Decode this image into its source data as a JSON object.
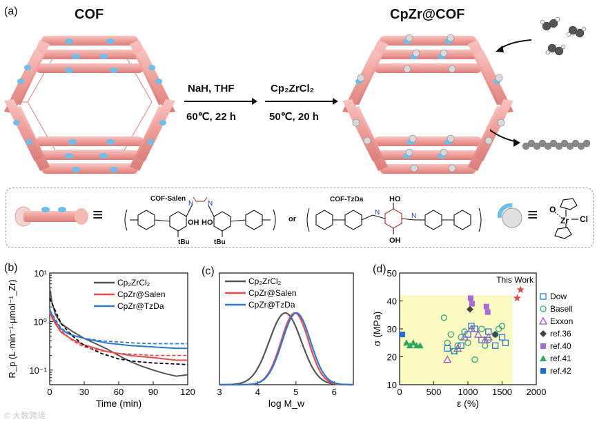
{
  "panel_a": {
    "tag": "(a)",
    "cof_title": "COF",
    "cpzr_title": "CpZr@COF",
    "step1": {
      "reagent": "NaH, THF",
      "condition": "60℃, 22 h"
    },
    "step2": {
      "reagent": "Cp₂ZrCl₂",
      "condition": "50℃, 20 h"
    },
    "equiv": "≡",
    "or": "or",
    "salen_name": "COF-Salen",
    "tzda_name": "COF-TzDa",
    "salen_ho": "HO",
    "salen_oh": "OH",
    "salen_tbu1": "tBu",
    "salen_tbu2": "tBu",
    "tzda_ho": "HO",
    "tzda_oh": "OH",
    "tzda_n1": "N",
    "tzda_n2": "N",
    "salen_n1": "N",
    "salen_n2": "N",
    "zr_label": "Zr",
    "cl_label": "Cl",
    "o_label": "O"
  },
  "chart_data": [
    {
      "panel": "(b)",
      "type": "line",
      "xlabel": "Time (min)",
      "ylabel": "R_p (L·min⁻¹·μmol⁻¹_Zr)",
      "yscale": "log",
      "xlim": [
        0,
        120
      ],
      "ylim": [
        0.05,
        10
      ],
      "xticks": [
        0,
        30,
        60,
        90,
        120
      ],
      "yticks": [
        {
          "v": 10,
          "label": "10¹"
        },
        {
          "v": 1,
          "label": "10⁰"
        },
        {
          "v": 0.1,
          "label": "10⁻¹"
        }
      ],
      "legend": [
        "Cp₂ZrCl₂",
        "CpZr@Salen",
        "CpZr@TzDa"
      ],
      "series": [
        {
          "name": "Cp₂ZrCl₂",
          "color": "#555555",
          "x": [
            0,
            2,
            5,
            10,
            15,
            20,
            30,
            40,
            50,
            60,
            70,
            80,
            90,
            100,
            110,
            120
          ],
          "y": [
            5.0,
            2.5,
            1.4,
            0.9,
            0.75,
            0.62,
            0.45,
            0.35,
            0.27,
            0.2,
            0.15,
            0.12,
            0.1,
            0.085,
            0.075,
            0.08
          ]
        },
        {
          "name": "CpZr@Salen",
          "color": "#e84a4a",
          "x": [
            0,
            2,
            5,
            10,
            15,
            20,
            30,
            40,
            50,
            60,
            70,
            80,
            90,
            100,
            110,
            120
          ],
          "y": [
            1.6,
            1.2,
            0.9,
            0.6,
            0.5,
            0.42,
            0.33,
            0.28,
            0.24,
            0.22,
            0.2,
            0.19,
            0.18,
            0.17,
            0.16,
            0.16
          ]
        },
        {
          "name": "CpZr@TzDa",
          "color": "#2a78d6",
          "x": [
            0,
            2,
            5,
            10,
            15,
            20,
            30,
            40,
            50,
            60,
            70,
            80,
            90,
            100,
            110,
            120
          ],
          "y": [
            1.8,
            1.4,
            1.0,
            0.7,
            0.58,
            0.52,
            0.45,
            0.4,
            0.36,
            0.34,
            0.32,
            0.31,
            0.3,
            0.29,
            0.28,
            0.28
          ]
        },
        {
          "name": "fit-Cp₂ZrCl₂",
          "color": "#000000",
          "dashed": true,
          "x": [
            0,
            10,
            20,
            30,
            45,
            60,
            75,
            90,
            105,
            120
          ],
          "y": [
            3.0,
            0.9,
            0.5,
            0.32,
            0.22,
            0.17,
            0.15,
            0.14,
            0.135,
            0.13
          ]
        },
        {
          "name": "fit-Salen",
          "color": "#e84a4a",
          "dashed": true,
          "x": [
            0,
            10,
            20,
            30,
            45,
            60,
            75,
            90,
            105,
            120
          ],
          "y": [
            1.5,
            0.65,
            0.4,
            0.3,
            0.25,
            0.22,
            0.21,
            0.2,
            0.2,
            0.2
          ]
        },
        {
          "name": "fit-TzDa",
          "color": "#2a78d6",
          "dashed": true,
          "x": [
            0,
            10,
            20,
            30,
            45,
            60,
            75,
            90,
            105,
            120
          ],
          "y": [
            1.7,
            0.72,
            0.52,
            0.45,
            0.4,
            0.38,
            0.36,
            0.35,
            0.35,
            0.35
          ]
        }
      ]
    },
    {
      "panel": "(c)",
      "type": "line",
      "xlabel": "log M_w",
      "xlim": [
        3,
        6.5
      ],
      "xticks": [
        3,
        4,
        5,
        6
      ],
      "legend": [
        "Cp₂ZrCl₂",
        "CpZr@Salen",
        "CpZr@TzDa"
      ],
      "series": [
        {
          "name": "Cp₂ZrCl₂",
          "color": "#555555",
          "center": 4.72,
          "sigma": 0.42
        },
        {
          "name": "CpZr@Salen",
          "color": "#e84a4a",
          "center": 4.97,
          "sigma": 0.36
        },
        {
          "name": "CpZr@TzDa",
          "color": "#2a78d6",
          "center": 5.01,
          "sigma": 0.37
        }
      ]
    },
    {
      "panel": "(d)",
      "type": "scatter",
      "xlabel": "ε (%)",
      "ylabel": "σ (MPa)",
      "xlim": [
        0,
        2000
      ],
      "ylim": [
        10,
        50
      ],
      "xticks": [
        0,
        500,
        1000,
        1500,
        2000
      ],
      "yticks": [
        10,
        20,
        30,
        40,
        50
      ],
      "annotation": "This Work",
      "region": {
        "x": [
          0,
          1650
        ],
        "y": [
          10,
          42
        ],
        "color": "#fbfac0"
      },
      "series": [
        {
          "name": "Dow",
          "marker": "square-open",
          "color": "#2a78d6",
          "x": [
            700,
            800,
            900,
            1000,
            1050,
            1100,
            1200,
            1300,
            1400,
            1500,
            1550
          ],
          "y": [
            23,
            22,
            24,
            28,
            31,
            30,
            26,
            29,
            24,
            27,
            25
          ]
        },
        {
          "name": "Basell",
          "marker": "circle-open",
          "color": "#2ea880",
          "x": [
            650,
            700,
            750,
            800,
            850,
            900,
            950,
            1000,
            1100,
            1200,
            1250,
            1300,
            1400,
            1450,
            1500
          ],
          "y": [
            34,
            25,
            28,
            22,
            24,
            27,
            29,
            25,
            19,
            30,
            24,
            26,
            28,
            30,
            31
          ]
        },
        {
          "name": "Exxon",
          "marker": "triangle-open",
          "color": "#9b59d0",
          "x": [
            700,
            850,
            950,
            1050,
            1150,
            1250,
            1300
          ],
          "y": [
            19,
            23,
            27,
            30,
            28,
            26,
            27
          ]
        },
        {
          "name": "ref.36",
          "marker": "diamond",
          "color": "#444444",
          "x": [
            1030,
            1400
          ],
          "y": [
            37,
            28
          ]
        },
        {
          "name": "ref.40",
          "marker": "square",
          "color": "#a66bd6",
          "x": [
            1040,
            1060,
            1270,
            1290
          ],
          "y": [
            41,
            39,
            38,
            36
          ]
        },
        {
          "name": "ref.41",
          "marker": "triangle",
          "color": "#2ea860",
          "x": [
            100,
            150,
            200,
            250,
            300
          ],
          "y": [
            25,
            24,
            25,
            24,
            24
          ]
        },
        {
          "name": "ref.42",
          "marker": "square",
          "color": "#1a6fd0",
          "x": [
            40
          ],
          "y": [
            28
          ]
        },
        {
          "name": "This Work",
          "marker": "star",
          "color": "#e84a4a",
          "x": [
            1720,
            1770
          ],
          "y": [
            41,
            44
          ]
        }
      ]
    }
  ],
  "watermark": "© 大数跨境"
}
